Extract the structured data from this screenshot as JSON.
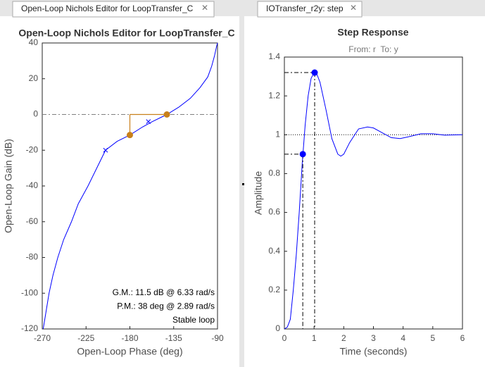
{
  "tabs": [
    "Open-Loop Nichols Editor for LoopTransfer_C",
    "IOTransfer_r2y: step"
  ],
  "chart_data": [
    {
      "type": "line",
      "title": "Open-Loop Nichols Editor for LoopTransfer_C",
      "xlabel": "Open-Loop Phase (deg)",
      "ylabel": "Open-Loop Gain (dB)",
      "xlim": [
        -270,
        -90
      ],
      "xticks": [
        -270,
        -225,
        -180,
        -135,
        -90
      ],
      "ylim": [
        -120,
        40
      ],
      "yticks": [
        -120,
        -100,
        -80,
        -60,
        -40,
        -20,
        0,
        20,
        40
      ],
      "color": "#0000ff",
      "x": [
        -269,
        -266,
        -263,
        -259,
        -254,
        -248,
        -240,
        -233,
        -223,
        -214,
        -205,
        -193,
        -180,
        -167,
        -157,
        -142,
        -130,
        -118,
        -108,
        -100,
        -96,
        -93,
        -91,
        -90
      ],
      "values": [
        -120,
        -110,
        -100,
        -90,
        -80,
        -70,
        -60,
        -50,
        -40,
        -30,
        -20,
        -15,
        -11.5,
        -7,
        -4,
        0,
        4,
        9,
        15,
        21,
        27,
        33,
        38,
        40
      ],
      "crosses": {
        "x": [
          -205,
          -161
        ],
        "values": [
          -20,
          -4
        ]
      },
      "points": {
        "x": [
          -180,
          -142
        ],
        "values": [
          -11.5,
          0
        ],
        "color": "#c8801b"
      },
      "reference_line": 0,
      "guides": "reference",
      "annotations": [
        "G.M.: 11.5 dB @ 6.33 rad/s",
        "P.M.: 38 deg @ 2.89 rad/s",
        "Stable loop"
      ]
    },
    {
      "type": "line",
      "title": "Step Response",
      "subtitle": "From: r  To: y",
      "xlabel": "Time (seconds)",
      "ylabel": "Amplitude",
      "xlim": [
        0,
        6
      ],
      "xticks": [
        0,
        1,
        2,
        3,
        4,
        5,
        6
      ],
      "ylim": [
        0,
        1.4
      ],
      "yticks": [
        0,
        0.2,
        0.4,
        0.6,
        0.8,
        1,
        1.2,
        1.4
      ],
      "color": "#0000ff",
      "x": [
        0,
        0.1,
        0.2,
        0.3,
        0.4,
        0.5,
        0.6,
        0.7,
        0.8,
        0.9,
        1.0,
        1.1,
        1.2,
        1.4,
        1.6,
        1.8,
        1.9,
        2.0,
        2.2,
        2.5,
        2.8,
        3.0,
        3.3,
        3.6,
        3.9,
        4.2,
        4.6,
        5.0,
        5.4,
        6
      ],
      "values": [
        0,
        0.01,
        0.05,
        0.2,
        0.38,
        0.6,
        0.85,
        1.05,
        1.2,
        1.29,
        1.32,
        1.31,
        1.27,
        1.13,
        0.98,
        0.9,
        0.89,
        0.9,
        0.96,
        1.03,
        1.04,
        1.035,
        1.01,
        0.985,
        0.98,
        0.99,
        1.005,
        1.005,
        0.998,
        1.0
      ],
      "points": {
        "x": [
          0.62,
          1.02
        ],
        "values": [
          0.9,
          1.32
        ],
        "color": "#0000ff"
      },
      "reference_line": 1,
      "guides": "axes"
    }
  ]
}
